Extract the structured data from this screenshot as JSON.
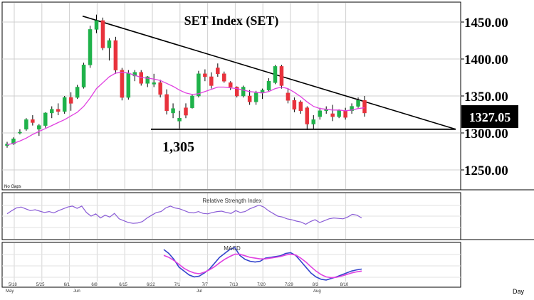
{
  "chart_data": [
    {
      "panel": "price",
      "type": "candlestick",
      "title": "SET Index (SET)",
      "note": "No Gaps",
      "y_ticks": [
        "1450.00",
        "1400.00",
        "1350.00",
        "1300.00",
        "1250.00"
      ],
      "ylim": [
        1225,
        1475
      ],
      "last_price_label": "1327.05",
      "support_label": "1,305",
      "support_level": 1305,
      "trendline": {
        "start_value": 1458,
        "end_value": 1305
      },
      "candles": [
        {
          "o": 1283,
          "h": 1288,
          "l": 1280,
          "c": 1285
        },
        {
          "o": 1285,
          "h": 1294,
          "l": 1284,
          "c": 1292
        },
        {
          "o": 1300,
          "h": 1305,
          "l": 1298,
          "c": 1301
        },
        {
          "o": 1305,
          "h": 1320,
          "l": 1303,
          "c": 1318
        },
        {
          "o": 1318,
          "h": 1324,
          "l": 1310,
          "c": 1314
        },
        {
          "o": 1305,
          "h": 1312,
          "l": 1296,
          "c": 1310
        },
        {
          "o": 1310,
          "h": 1328,
          "l": 1307,
          "c": 1327
        },
        {
          "o": 1327,
          "h": 1336,
          "l": 1320,
          "c": 1332
        },
        {
          "o": 1332,
          "h": 1340,
          "l": 1324,
          "c": 1329
        },
        {
          "o": 1329,
          "h": 1350,
          "l": 1326,
          "c": 1348
        },
        {
          "o": 1348,
          "h": 1355,
          "l": 1330,
          "c": 1340
        },
        {
          "o": 1348,
          "h": 1365,
          "l": 1346,
          "c": 1362
        },
        {
          "o": 1362,
          "h": 1395,
          "l": 1360,
          "c": 1392
        },
        {
          "o": 1392,
          "h": 1445,
          "l": 1388,
          "c": 1440
        },
        {
          "o": 1440,
          "h": 1460,
          "l": 1435,
          "c": 1452
        },
        {
          "o": 1452,
          "h": 1456,
          "l": 1412,
          "c": 1415
        },
        {
          "o": 1415,
          "h": 1428,
          "l": 1398,
          "c": 1425
        },
        {
          "o": 1425,
          "h": 1430,
          "l": 1380,
          "c": 1385
        },
        {
          "o": 1385,
          "h": 1388,
          "l": 1344,
          "c": 1348
        },
        {
          "o": 1348,
          "h": 1385,
          "l": 1345,
          "c": 1381
        },
        {
          "o": 1377,
          "h": 1385,
          "l": 1370,
          "c": 1382
        },
        {
          "o": 1382,
          "h": 1385,
          "l": 1364,
          "c": 1367
        },
        {
          "o": 1367,
          "h": 1377,
          "l": 1362,
          "c": 1376
        },
        {
          "o": 1366,
          "h": 1380,
          "l": 1362,
          "c": 1368
        },
        {
          "o": 1368,
          "h": 1372,
          "l": 1348,
          "c": 1352
        },
        {
          "o": 1352,
          "h": 1359,
          "l": 1325,
          "c": 1330
        },
        {
          "o": 1327,
          "h": 1340,
          "l": 1320,
          "c": 1333
        },
        {
          "o": 1316,
          "h": 1330,
          "l": 1306,
          "c": 1320
        },
        {
          "o": 1334,
          "h": 1340,
          "l": 1320,
          "c": 1324
        },
        {
          "o": 1334,
          "h": 1352,
          "l": 1333,
          "c": 1350
        },
        {
          "o": 1350,
          "h": 1384,
          "l": 1348,
          "c": 1380
        },
        {
          "o": 1380,
          "h": 1386,
          "l": 1370,
          "c": 1376
        },
        {
          "o": 1376,
          "h": 1382,
          "l": 1360,
          "c": 1364
        },
        {
          "o": 1388,
          "h": 1394,
          "l": 1376,
          "c": 1380
        },
        {
          "o": 1380,
          "h": 1383,
          "l": 1368,
          "c": 1370
        },
        {
          "o": 1368,
          "h": 1370,
          "l": 1358,
          "c": 1362
        },
        {
          "o": 1362,
          "h": 1363,
          "l": 1348,
          "c": 1350
        },
        {
          "o": 1350,
          "h": 1364,
          "l": 1348,
          "c": 1362
        },
        {
          "o": 1350,
          "h": 1358,
          "l": 1338,
          "c": 1342
        },
        {
          "o": 1342,
          "h": 1357,
          "l": 1338,
          "c": 1354
        },
        {
          "o": 1354,
          "h": 1360,
          "l": 1346,
          "c": 1358
        },
        {
          "o": 1358,
          "h": 1374,
          "l": 1356,
          "c": 1370
        },
        {
          "o": 1368,
          "h": 1392,
          "l": 1366,
          "c": 1390
        },
        {
          "o": 1390,
          "h": 1392,
          "l": 1360,
          "c": 1364
        },
        {
          "o": 1354,
          "h": 1360,
          "l": 1340,
          "c": 1344
        },
        {
          "o": 1344,
          "h": 1348,
          "l": 1328,
          "c": 1332
        },
        {
          "o": 1342,
          "h": 1344,
          "l": 1326,
          "c": 1330
        },
        {
          "o": 1334,
          "h": 1336,
          "l": 1304,
          "c": 1312
        },
        {
          "o": 1312,
          "h": 1324,
          "l": 1305,
          "c": 1318
        },
        {
          "o": 1322,
          "h": 1334,
          "l": 1318,
          "c": 1330
        },
        {
          "o": 1330,
          "h": 1336,
          "l": 1326,
          "c": 1332
        },
        {
          "o": 1326,
          "h": 1338,
          "l": 1316,
          "c": 1322
        },
        {
          "o": 1322,
          "h": 1332,
          "l": 1320,
          "c": 1330
        },
        {
          "o": 1330,
          "h": 1334,
          "l": 1318,
          "c": 1321
        },
        {
          "o": 1330,
          "h": 1340,
          "l": 1326,
          "c": 1336
        },
        {
          "o": 1336,
          "h": 1348,
          "l": 1334,
          "c": 1344
        },
        {
          "o": 1344,
          "h": 1350,
          "l": 1322,
          "c": 1327
        }
      ],
      "ma": [
        1284,
        1286,
        1289,
        1293,
        1298,
        1302,
        1306,
        1310,
        1314,
        1318,
        1323,
        1328,
        1336,
        1347,
        1360,
        1368,
        1376,
        1381,
        1382,
        1381,
        1378,
        1375,
        1374,
        1373,
        1371,
        1367,
        1363,
        1358,
        1354,
        1352,
        1353,
        1356,
        1359,
        1362,
        1362,
        1361,
        1360,
        1358,
        1356,
        1355,
        1354,
        1356,
        1360,
        1362,
        1360,
        1355,
        1349,
        1342,
        1336,
        1333,
        1332,
        1331,
        1331,
        1330,
        1331,
        1333,
        1334
      ]
    },
    {
      "panel": "rsi",
      "type": "line",
      "title": "Relative Strength Index",
      "values": [
        55,
        62,
        68,
        70,
        66,
        62,
        64,
        61,
        58,
        60,
        57,
        62,
        66,
        70,
        72,
        67,
        72,
        58,
        50,
        55,
        46,
        52,
        48,
        56,
        44,
        40,
        36,
        34,
        35,
        38,
        46,
        52,
        58,
        60,
        68,
        72,
        68,
        66,
        62,
        58,
        57,
        60,
        56,
        55,
        58,
        60,
        61,
        58,
        56,
        62,
        58,
        60,
        66,
        70,
        74,
        70,
        62,
        56,
        50,
        48,
        44,
        42,
        39,
        37,
        32,
        38,
        42,
        36,
        40,
        44,
        46,
        45,
        44,
        48,
        54,
        52,
        46
      ]
    },
    {
      "panel": "macd",
      "type": "line",
      "title": "MACD",
      "series": [
        {
          "values": [
            40,
            30,
            15,
            -5,
            -15,
            -25,
            -30,
            -28,
            -20,
            -10,
            5,
            20,
            30,
            40,
            45,
            25,
            15,
            10,
            8,
            10,
            18,
            20,
            22,
            24,
            30,
            32,
            25,
            10,
            -5,
            -20,
            -30,
            -36,
            -38,
            -34,
            -30,
            -25,
            -20,
            -15,
            -12,
            -10
          ]
        },
        {
          "values": [
            25,
            20,
            12,
            2,
            -8,
            -15,
            -20,
            -22,
            -18,
            -12,
            -4,
            6,
            15,
            22,
            28,
            28,
            24,
            20,
            18,
            16,
            16,
            18,
            20,
            22,
            26,
            28,
            26,
            18,
            8,
            -4,
            -15,
            -24,
            -30,
            -32,
            -31,
            -28,
            -24,
            -20,
            -17,
            -15
          ]
        }
      ]
    }
  ],
  "x_axis": {
    "date_ticks": [
      "5/18",
      "5/25",
      "6/1",
      "6/8",
      "6/15",
      "6/22",
      "7/1",
      "7/7",
      "7/13",
      "7/20",
      "7/29",
      "8/3",
      "8/10"
    ],
    "month_labels": [
      "May",
      "Jun",
      "Jul",
      "Aug"
    ],
    "unit_label": "Day"
  },
  "colors": {
    "bull": "#1fb24a",
    "bear": "#e8323c",
    "ma": "#e040e0",
    "rsi": "#8a5cd6",
    "macd": "#3344cc",
    "signal": "#e040e0",
    "trendline": "#000000"
  }
}
